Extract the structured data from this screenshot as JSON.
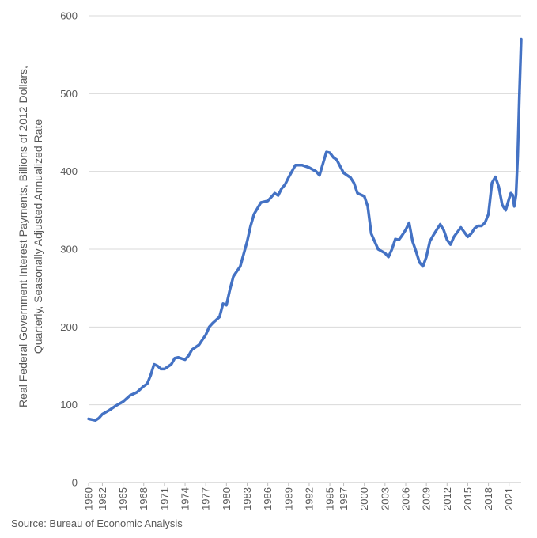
{
  "chart_data": {
    "type": "line",
    "ylabel_lines": [
      "Real Federal Government Interest Payments, Billions of 2012 Dollars,",
      "Quarterly, Seasonally Adjusted Annualized Rate"
    ],
    "ylim": [
      0,
      600
    ],
    "yticks": [
      0,
      100,
      200,
      300,
      400,
      500,
      600
    ],
    "xlim": [
      1960,
      2022.75
    ],
    "xticks": [
      1960,
      1962,
      1965,
      1968,
      1971,
      1974,
      1977,
      1980,
      1983,
      1986,
      1989,
      1992,
      1995,
      1997,
      2000,
      2003,
      2006,
      2009,
      2012,
      2015,
      2018,
      2021
    ],
    "grid": true,
    "line_color": "#4472C4",
    "series": [
      {
        "x": [
          1960,
          1961,
          1961.5,
          1962,
          1963,
          1964,
          1965,
          1966,
          1967,
          1968,
          1968.5,
          1969,
          1969.5,
          1970,
          1970.5,
          1971,
          1972,
          1972.5,
          1973,
          1974,
          1974.5,
          1975,
          1976,
          1977,
          1977.5,
          1978,
          1979,
          1979.5,
          1980,
          1980.5,
          1981,
          1982,
          1983,
          1983.5,
          1984,
          1985,
          1986,
          1987,
          1987.5,
          1988,
          1988.5,
          1989,
          1990,
          1991,
          1992,
          1993,
          1993.5,
          1994,
          1994.5,
          1995,
          1995.5,
          1996,
          1997,
          1998,
          1998.5,
          1999,
          2000,
          2000.5,
          2001,
          2002,
          2003,
          2003.5,
          2004,
          2004.5,
          2005,
          2005.5,
          2006,
          2006.5,
          2007,
          2007.5,
          2008,
          2008.5,
          2009,
          2009.5,
          2010,
          2011,
          2011.5,
          2012,
          2012.5,
          2013,
          2014,
          2014.5,
          2015,
          2015.5,
          2016,
          2016.5,
          2017,
          2017.5,
          2018,
          2018.5,
          2019,
          2019.5,
          2020,
          2020.5,
          2021,
          2021.25,
          2021.5,
          2021.75,
          2022,
          2022.25,
          2022.5,
          2022.75
        ],
        "y": [
          82,
          80,
          83,
          88,
          93,
          99,
          104,
          112,
          116,
          124,
          127,
          138,
          152,
          150,
          146,
          146,
          152,
          160,
          161,
          158,
          163,
          171,
          177,
          190,
          200,
          205,
          213,
          230,
          228,
          248,
          265,
          278,
          310,
          330,
          345,
          360,
          362,
          372,
          369,
          378,
          383,
          392,
          408,
          408,
          405,
          400,
          395,
          410,
          425,
          424,
          418,
          415,
          398,
          392,
          385,
          372,
          368,
          355,
          320,
          300,
          295,
          290,
          300,
          313,
          312,
          318,
          325,
          334,
          310,
          297,
          283,
          278,
          290,
          310,
          318,
          332,
          325,
          312,
          306,
          316,
          328,
          322,
          316,
          320,
          327,
          330,
          330,
          334,
          345,
          385,
          393,
          380,
          357,
          350,
          365,
          372,
          370,
          355,
          370,
          420,
          500,
          570
        ]
      }
    ]
  },
  "axes": {
    "y_tick_labels": [
      "0",
      "100",
      "200",
      "300",
      "400",
      "500",
      "600"
    ],
    "x_tick_labels": [
      "1960",
      "1962",
      "1965",
      "1968",
      "1971",
      "1974",
      "1977",
      "1980",
      "1983",
      "1986",
      "1989",
      "1992",
      "1995",
      "1997",
      "2000",
      "2003",
      "2006",
      "2009",
      "2012",
      "2015",
      "2018",
      "2021"
    ]
  },
  "source": "Source: Bureau of Economic Analysis"
}
